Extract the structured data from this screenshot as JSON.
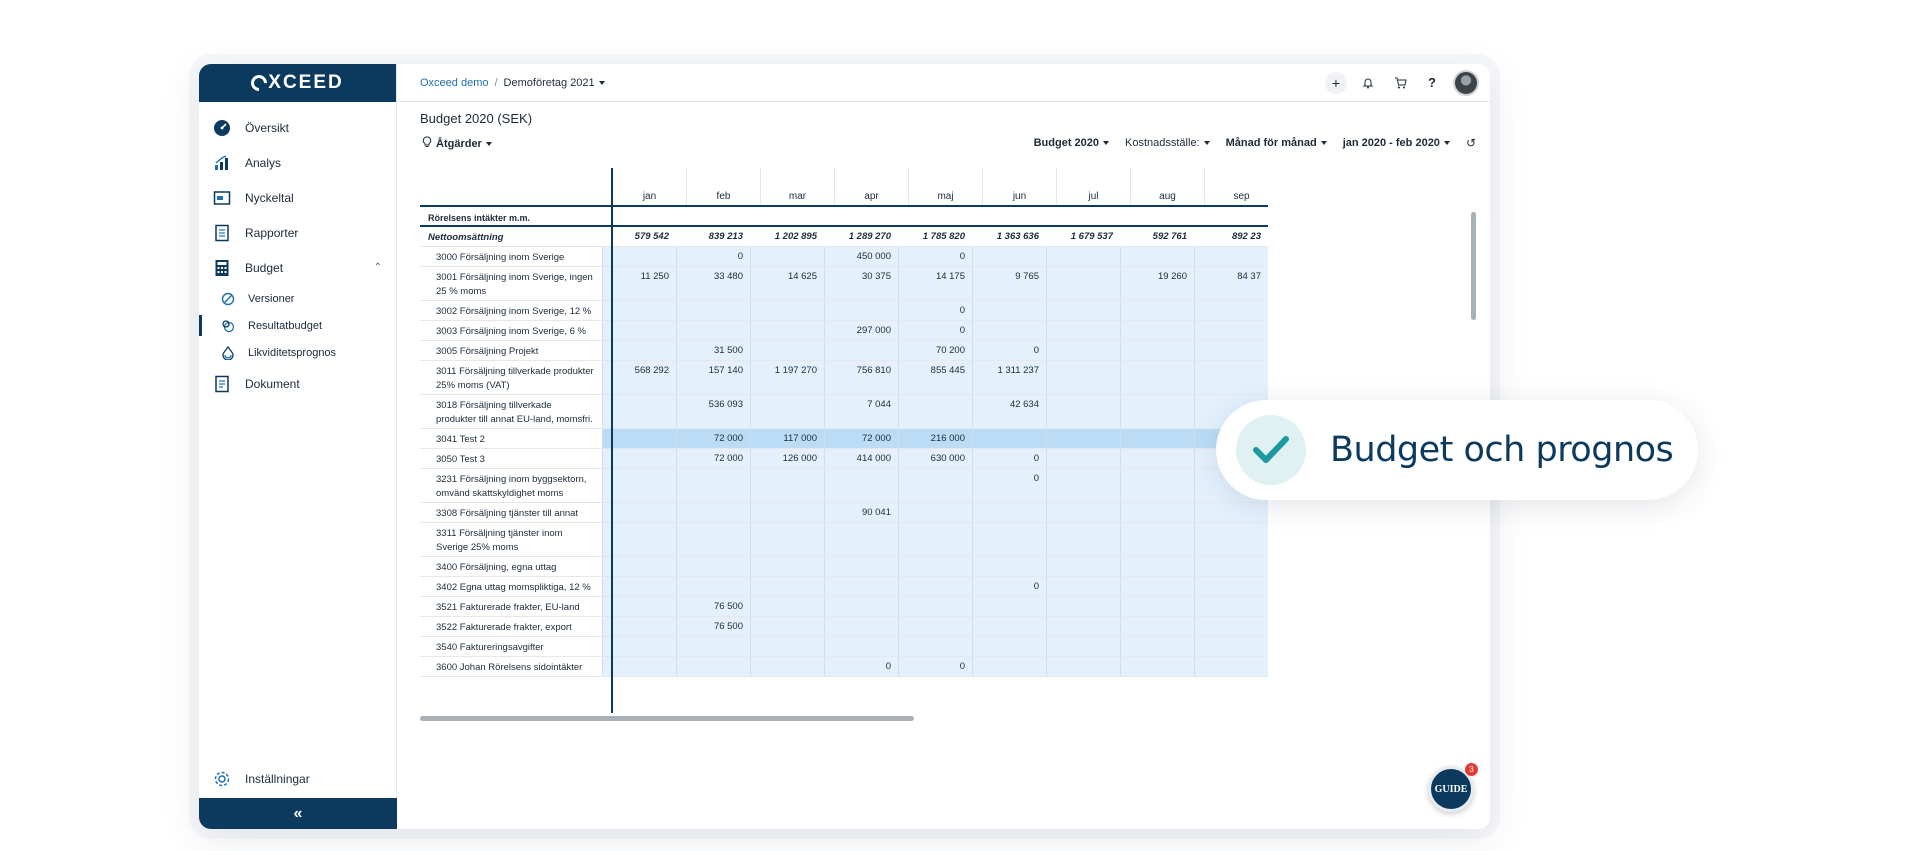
{
  "app": {
    "logo": "XCEED"
  },
  "sidebar": {
    "items": [
      {
        "label": "Översikt",
        "icon": "dashboard-icon"
      },
      {
        "label": "Analys",
        "icon": "chart-icon"
      },
      {
        "label": "Nyckeltal",
        "icon": "keyfigures-icon"
      },
      {
        "label": "Rapporter",
        "icon": "report-icon"
      },
      {
        "label": "Budget",
        "icon": "calculator-icon"
      }
    ],
    "budget_sub": [
      {
        "label": "Versioner",
        "icon": "versions-icon"
      },
      {
        "label": "Resultatbudget",
        "icon": "result-budget-icon"
      },
      {
        "label": "Likviditetsprognos",
        "icon": "liquidity-icon"
      }
    ],
    "documents": {
      "label": "Dokument",
      "icon": "document-icon"
    },
    "settings": {
      "label": "Inställningar",
      "icon": "gear-icon"
    },
    "collapse": "«"
  },
  "topbar": {
    "breadcrumb_link": "Oxceed demo",
    "breadcrumb_sep": "/",
    "breadcrumb_current": "Demoföretag 2021",
    "icons": {
      "plus": "+",
      "bell": "bell-icon",
      "cart": "cart-icon",
      "help": "?"
    }
  },
  "page": {
    "title": "Budget 2020 (SEK)",
    "actions": "Åtgärder",
    "filters": {
      "budget": "Budget 2020",
      "cost_center": "Kostnadsställe:",
      "period_mode": "Månad för månad",
      "range": "jan 2020 - feb 2020"
    }
  },
  "grid": {
    "months": [
      "jan",
      "feb",
      "mar",
      "apr",
      "maj",
      "jun",
      "jul",
      "aug",
      "sep"
    ],
    "rows": [
      {
        "label": "Rörelsens intäkter m.m.",
        "kind": "section",
        "h": 1,
        "values": [
          "",
          "",
          "",
          "",
          "",
          "",
          "",
          "",
          ""
        ]
      },
      {
        "label": "Nettoomsättning",
        "kind": "total",
        "h": 1,
        "values": [
          "579 542",
          "839 213",
          "1 202 895",
          "1 289 270",
          "1 785 820",
          "1 363 636",
          "1 679 537",
          "592 761",
          "892 23"
        ]
      },
      {
        "label": "3000 Försäljning inom Sverige",
        "kind": "",
        "h": 1,
        "values": [
          "",
          "0",
          "",
          "450 000",
          "0",
          "",
          "",
          "",
          ""
        ]
      },
      {
        "label": "3001 Försäljning inom Sverige, ingen 25 % moms",
        "kind": "",
        "h": 2,
        "values": [
          "11 250",
          "33 480",
          "14 625",
          "30 375",
          "14 175",
          "9 765",
          "",
          "19 260",
          "84 37"
        ]
      },
      {
        "label": "3002 Försäljning inom Sverige, 12 % moms",
        "kind": "",
        "h": 1,
        "values": [
          "",
          "",
          "",
          "",
          "0",
          "",
          "",
          "",
          ""
        ]
      },
      {
        "label": "3003 Försäljning inom Sverige, 6 % moms",
        "kind": "",
        "h": 1,
        "values": [
          "",
          "",
          "",
          "297 000",
          "0",
          "",
          "",
          "",
          ""
        ]
      },
      {
        "label": "3005 Försäljning Projekt",
        "kind": "",
        "h": 1,
        "values": [
          "",
          "31 500",
          "",
          "",
          "70 200",
          "0",
          "",
          "",
          ""
        ]
      },
      {
        "label": "3011 Försäljning tillverkade produkter 25% moms (VAT)",
        "kind": "",
        "h": 2,
        "values": [
          "568 292",
          "157 140",
          "1 197 270",
          "756 810",
          "855 445",
          "1 311 237",
          "",
          "",
          ""
        ]
      },
      {
        "label": "3018 Försäljning tillverkade produkter till annat EU-land, momsfri.",
        "kind": "",
        "h": 2,
        "values": [
          "",
          "536 093",
          "",
          "7 044",
          "",
          "42 634",
          "",
          "",
          ""
        ]
      },
      {
        "label": "3041 Test 2",
        "kind": "hl",
        "h": 1,
        "values": [
          "",
          "72 000",
          "117 000",
          "72 000",
          "216 000",
          "",
          "",
          "",
          ""
        ]
      },
      {
        "label": "3050 Test 3",
        "kind": "",
        "h": 1,
        "values": [
          "",
          "72 000",
          "126 000",
          "414 000",
          "630 000",
          "0",
          "",
          "",
          ""
        ]
      },
      {
        "label": "3231 Försäljning inom byggsektorn, omvänd skattskyldighet moms",
        "kind": "",
        "h": 2,
        "values": [
          "",
          "",
          "",
          "",
          "",
          "0",
          "",
          "",
          ""
        ]
      },
      {
        "label": "3308 Försäljning tjänster till annat EU-land",
        "kind": "",
        "h": 1,
        "values": [
          "",
          "",
          "",
          "90 041",
          "",
          "",
          "",
          "",
          ""
        ]
      },
      {
        "label": "3311 Försäljning tjänster inom Sverige 25% moms",
        "kind": "",
        "h": 2,
        "values": [
          "",
          "",
          "",
          "",
          "",
          "",
          "",
          "",
          ""
        ]
      },
      {
        "label": "3400 Försäljning, egna uttag",
        "kind": "",
        "h": 1,
        "values": [
          "",
          "",
          "",
          "",
          "",
          "",
          "",
          "",
          ""
        ]
      },
      {
        "label": "3402 Egna uttag momspliktiga, 12 %",
        "kind": "",
        "h": 1,
        "values": [
          "",
          "",
          "",
          "",
          "",
          "0",
          "",
          "",
          ""
        ]
      },
      {
        "label": "3521 Fakturerade frakter, EU-land",
        "kind": "",
        "h": 1,
        "values": [
          "",
          "76 500",
          "",
          "",
          "",
          "",
          "",
          "",
          ""
        ]
      },
      {
        "label": "3522 Fakturerade frakter, export",
        "kind": "",
        "h": 1,
        "values": [
          "",
          "76 500",
          "",
          "",
          "",
          "",
          "",
          "",
          ""
        ]
      },
      {
        "label": "3540 Faktureringsavgifter",
        "kind": "",
        "h": 1,
        "values": [
          "",
          "",
          "",
          "",
          "",
          "",
          "",
          "",
          ""
        ]
      },
      {
        "label": "3600 Johan Rörelsens sidointäkter",
        "kind": "",
        "h": 1,
        "values": [
          "",
          "",
          "",
          "0",
          "0",
          "",
          "",
          "",
          ""
        ]
      }
    ]
  },
  "callout": {
    "text": "Budget och prognos",
    "icon": "check-icon"
  },
  "guide": {
    "label": "GUIDE",
    "badge": "3"
  },
  "colors": {
    "brand": "#0b3a5e",
    "cell": "#e4f1fd",
    "highlight": "#bcdcf5",
    "teal": "#1a9aa0"
  }
}
